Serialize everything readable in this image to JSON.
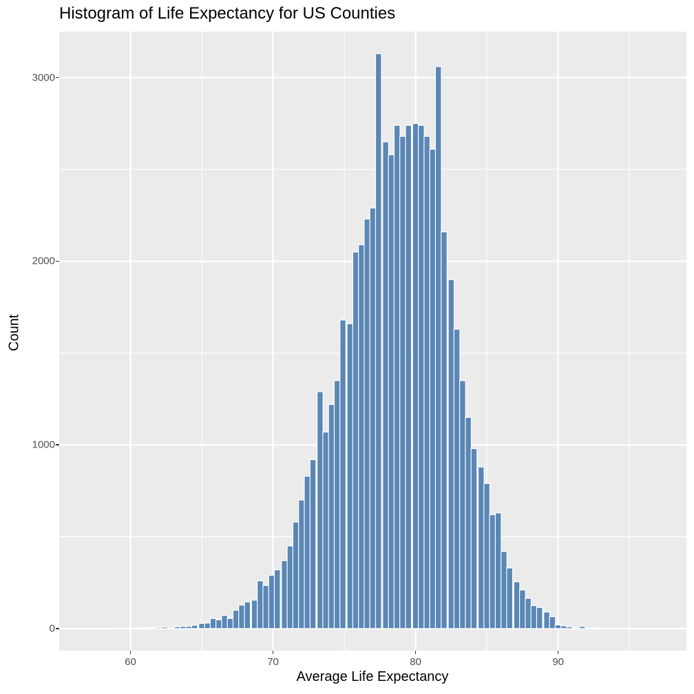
{
  "chart_data": {
    "type": "bar",
    "title": "Histogram of Life Expectancy for US Counties",
    "xlabel": "Average Life Expectancy",
    "ylabel": "Count",
    "xlim": [
      55,
      99
    ],
    "ylim": [
      -120,
      3250
    ],
    "x_ticks": [
      60,
      70,
      80,
      90
    ],
    "y_ticks": [
      0,
      1000,
      2000,
      3000
    ],
    "grid": true,
    "bar_color": "#5b87b5",
    "bar_edge_color": "#ffffff",
    "panel_color": "#ebebeb",
    "binwidth": 0.415,
    "x": [
      57.0,
      57.4,
      57.8,
      58.3,
      58.7,
      59.1,
      59.5,
      59.9,
      60.4,
      60.8,
      61.2,
      61.6,
      62.0,
      62.4,
      62.9,
      63.3,
      63.7,
      64.1,
      64.5,
      65.0,
      65.4,
      65.8,
      66.2,
      66.6,
      67.0,
      67.4,
      67.8,
      68.2,
      68.7,
      69.1,
      69.5,
      69.9,
      70.3,
      70.8,
      71.2,
      71.6,
      72.0,
      72.4,
      72.8,
      73.3,
      73.7,
      74.1,
      74.5,
      74.9,
      75.4,
      75.8,
      76.2,
      76.6,
      77.0,
      77.4,
      77.9,
      78.3,
      78.7,
      79.1,
      79.5,
      80.0,
      80.4,
      80.8,
      81.2,
      81.6,
      82.0,
      82.5,
      82.9,
      83.3,
      83.7,
      84.1,
      84.6,
      85.0,
      85.4,
      85.8,
      86.2,
      86.6,
      87.1,
      87.5,
      87.9,
      88.3,
      88.7,
      89.2,
      89.6,
      90.0,
      90.4,
      90.8,
      91.2,
      91.7,
      92.1,
      92.5,
      92.9,
      93.3,
      93.8,
      94.2,
      94.6,
      95.0,
      95.4,
      95.8,
      96.3,
      96.7,
      97.1,
      97.5
    ],
    "values": [
      1,
      0,
      1,
      1,
      2,
      2,
      2,
      3,
      3,
      4,
      4,
      5,
      6,
      8,
      3,
      10,
      12,
      12,
      18,
      28,
      30,
      55,
      48,
      72,
      55,
      100,
      128,
      145,
      155,
      260,
      235,
      290,
      320,
      370,
      450,
      580,
      700,
      830,
      920,
      1290,
      1070,
      1220,
      1350,
      1680,
      1660,
      2050,
      2090,
      2230,
      2290,
      3130,
      2650,
      2580,
      2740,
      2680,
      2740,
      2750,
      2740,
      2680,
      2610,
      3060,
      2160,
      1900,
      1630,
      1350,
      1150,
      980,
      880,
      790,
      620,
      630,
      420,
      330,
      255,
      210,
      165,
      125,
      115,
      90,
      65,
      20,
      15,
      10,
      5,
      12,
      5,
      4,
      3,
      3,
      2,
      2,
      1,
      1,
      1,
      1,
      0,
      1,
      0,
      0
    ]
  }
}
